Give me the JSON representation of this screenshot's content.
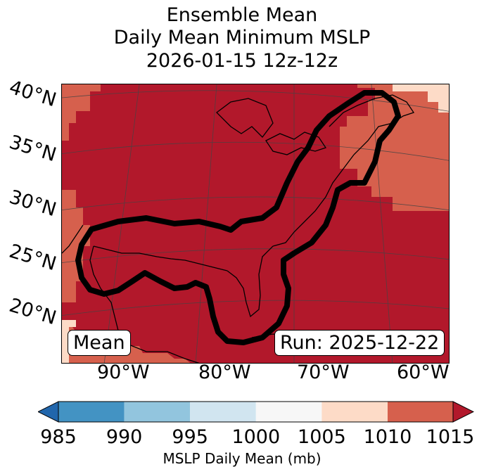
{
  "title": {
    "line1": "Ensemble Mean",
    "line2": "Daily Mean Minimum MSLP",
    "line3": "2026-01-15 12z-12z"
  },
  "map": {
    "lat_labels": [
      "40°N",
      "35°N",
      "30°N",
      "25°N",
      "20°N"
    ],
    "lon_labels": [
      "90°W",
      "80°W",
      "70°W",
      "60°W"
    ],
    "label_left": "Mean",
    "label_right": "Run: 2025-12-22"
  },
  "colorbar": {
    "ticks": [
      "985",
      "990",
      "995",
      "1000",
      "1005",
      "1010",
      "1015"
    ],
    "label": "MSLP Daily Mean (mb)",
    "colors": [
      "#2166ac",
      "#4393c3",
      "#92c5de",
      "#d1e5f0",
      "#f7f7f7",
      "#fddbc7",
      "#d6604d",
      "#b2182b"
    ]
  }
}
